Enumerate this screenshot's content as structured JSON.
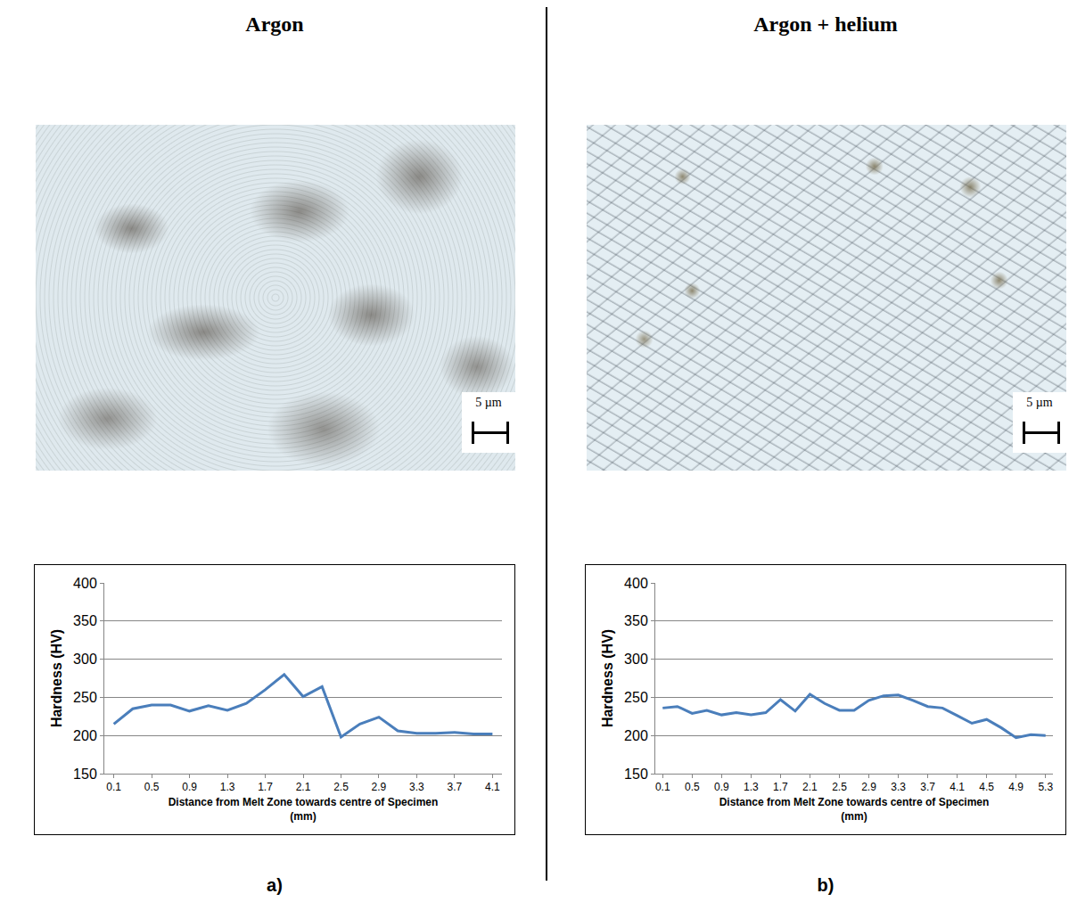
{
  "figure": {
    "panels": [
      {
        "heading": "Argon",
        "micrograph": {
          "scale_bar": "5 µm"
        },
        "panel_label": "a)"
      },
      {
        "heading": "Argon + helium",
        "micrograph": {
          "scale_bar": "5 µm"
        },
        "panel_label": "b)"
      }
    ]
  },
  "chart_data": [
    {
      "type": "line",
      "xlabel": "Distance from Melt Zone towards centre of Specimen (mm)",
      "ylabel": "Hardness (HV)",
      "x": [
        0.1,
        0.3,
        0.5,
        0.7,
        0.9,
        1.1,
        1.3,
        1.5,
        1.7,
        1.9,
        2.1,
        2.3,
        2.5,
        2.7,
        2.9,
        3.1,
        3.3,
        3.5,
        3.7,
        3.9,
        4.1
      ],
      "values": [
        215,
        235,
        240,
        240,
        232,
        239,
        233,
        242,
        260,
        280,
        251,
        264,
        198,
        215,
        224,
        206,
        203,
        203,
        204,
        202,
        202
      ],
      "color": "#4a7ebb",
      "xlim": [
        0,
        4.2
      ],
      "xticks": [
        0.1,
        0.5,
        0.9,
        1.3,
        1.7,
        2.1,
        2.5,
        2.9,
        3.3,
        3.7,
        4.1
      ],
      "ylim": [
        150,
        400
      ],
      "yticks": [
        150,
        200,
        250,
        300,
        350,
        400
      ],
      "grid": true
    },
    {
      "type": "line",
      "xlabel": "Distance from Melt Zone towards centre of Specimen (mm)",
      "ylabel": "Hardness (HV)",
      "x": [
        0.1,
        0.3,
        0.5,
        0.7,
        0.9,
        1.1,
        1.3,
        1.5,
        1.7,
        1.9,
        2.1,
        2.3,
        2.5,
        2.7,
        2.9,
        3.1,
        3.3,
        3.5,
        3.7,
        3.9,
        4.1,
        4.3,
        4.5,
        4.7,
        4.9,
        5.1,
        5.3
      ],
      "values": [
        236,
        238,
        229,
        233,
        227,
        230,
        227,
        230,
        247,
        232,
        254,
        242,
        233,
        233,
        246,
        252,
        253,
        246,
        238,
        236,
        226,
        216,
        221,
        210,
        197,
        201,
        200
      ],
      "color": "#4a7ebb",
      "xlim": [
        0,
        5.4
      ],
      "xticks": [
        0.1,
        0.5,
        0.9,
        1.3,
        1.7,
        2.1,
        2.5,
        2.9,
        3.3,
        3.7,
        4.1,
        4.5,
        4.9,
        5.3
      ],
      "ylim": [
        150,
        400
      ],
      "yticks": [
        150,
        200,
        250,
        300,
        350,
        400
      ],
      "grid": true
    }
  ]
}
